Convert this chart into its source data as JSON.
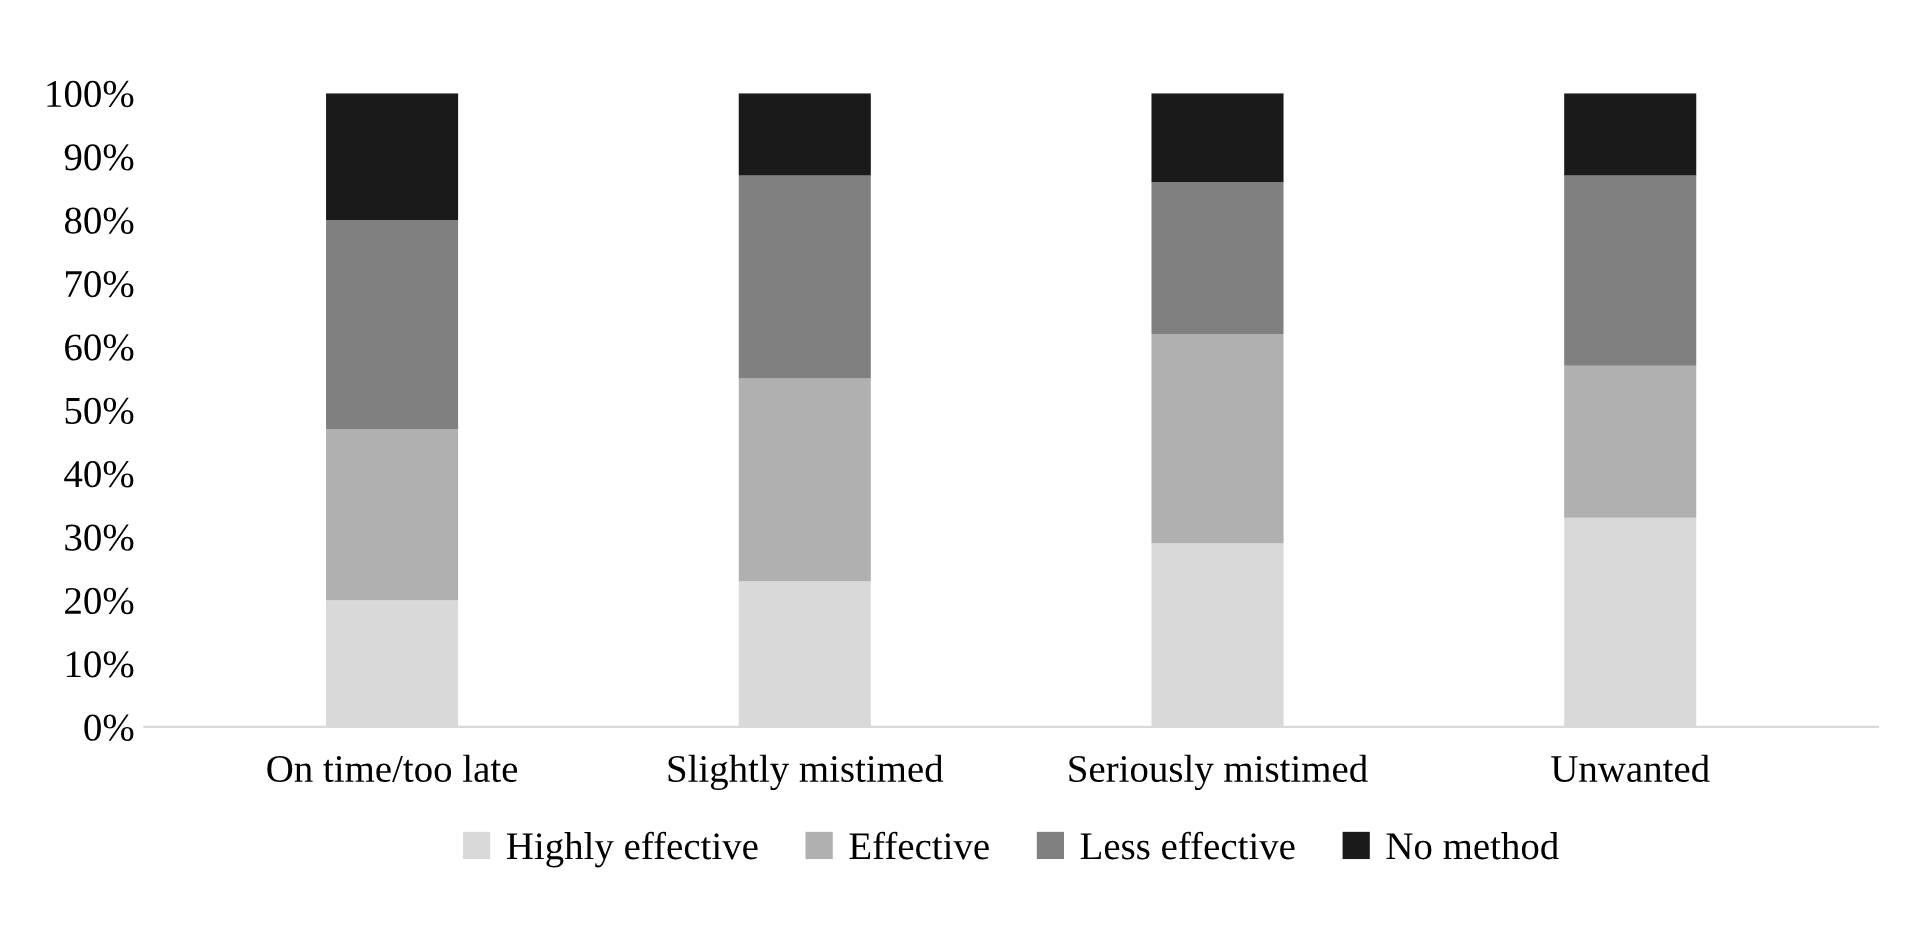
{
  "chart_data": {
    "type": "bar",
    "stacked": true,
    "categories": [
      "On time/too late",
      "Slightly mistimed",
      "Seriously mistimed",
      "Unwanted"
    ],
    "series": [
      {
        "name": "Highly effective",
        "color": "#d9d9d9",
        "values": [
          20,
          23,
          29,
          33
        ]
      },
      {
        "name": "Effective",
        "color": "#b0b0b0",
        "values": [
          27,
          32,
          33,
          24
        ]
      },
      {
        "name": "Less effective",
        "color": "#808080",
        "values": [
          33,
          32,
          24,
          30
        ]
      },
      {
        "name": "No method",
        "color": "#1a1a1a",
        "values": [
          20,
          13,
          14,
          13
        ]
      }
    ],
    "ylim": [
      0,
      100
    ],
    "yticks": [
      {
        "value": 0,
        "label": "0%"
      },
      {
        "value": 10,
        "label": "10%"
      },
      {
        "value": 20,
        "label": "20%"
      },
      {
        "value": 30,
        "label": "30%"
      },
      {
        "value": 40,
        "label": "40%"
      },
      {
        "value": 50,
        "label": "50%"
      },
      {
        "value": 60,
        "label": "60%"
      },
      {
        "value": 70,
        "label": "70%"
      },
      {
        "value": 80,
        "label": "80%"
      },
      {
        "value": 90,
        "label": "90%"
      },
      {
        "value": 100,
        "label": "100%"
      }
    ],
    "grid": false,
    "legend": "bottom"
  }
}
